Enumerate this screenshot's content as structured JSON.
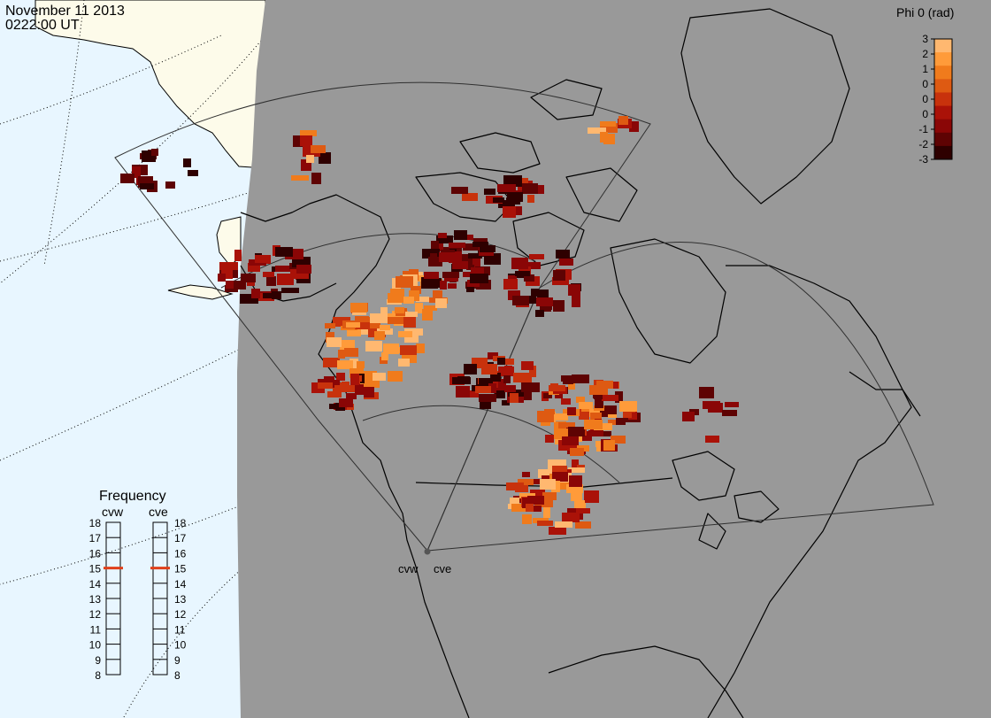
{
  "header": {
    "date": "November 11 2013",
    "time": "0222:00 UT"
  },
  "colorbar": {
    "title": "Phi 0 (rad)",
    "ticks": [
      "3",
      "2",
      "1",
      "0",
      "0",
      "0",
      "-1",
      "-2",
      "-3"
    ],
    "colors": [
      "#ffb870",
      "#ff9b3a",
      "#f07b1c",
      "#de5a12",
      "#c8320c",
      "#aa1208",
      "#8a0606",
      "#5e0303",
      "#2e0000"
    ]
  },
  "radars": {
    "west_label": "cvw",
    "east_label": "cve"
  },
  "frequency_panel": {
    "title": "Frequency",
    "col_west": "cvw",
    "col_east": "cve",
    "scale": [
      "18",
      "17",
      "16",
      "15",
      "14",
      "13",
      "12",
      "11",
      "10",
      "9",
      "8"
    ],
    "west_mhz": 15,
    "east_mhz": 15,
    "marker_color": "#e0401a"
  },
  "map_colors": {
    "ocean": "#e8f6ff",
    "land_daylight": "#fdfbea",
    "night_shade": "#999999"
  }
}
